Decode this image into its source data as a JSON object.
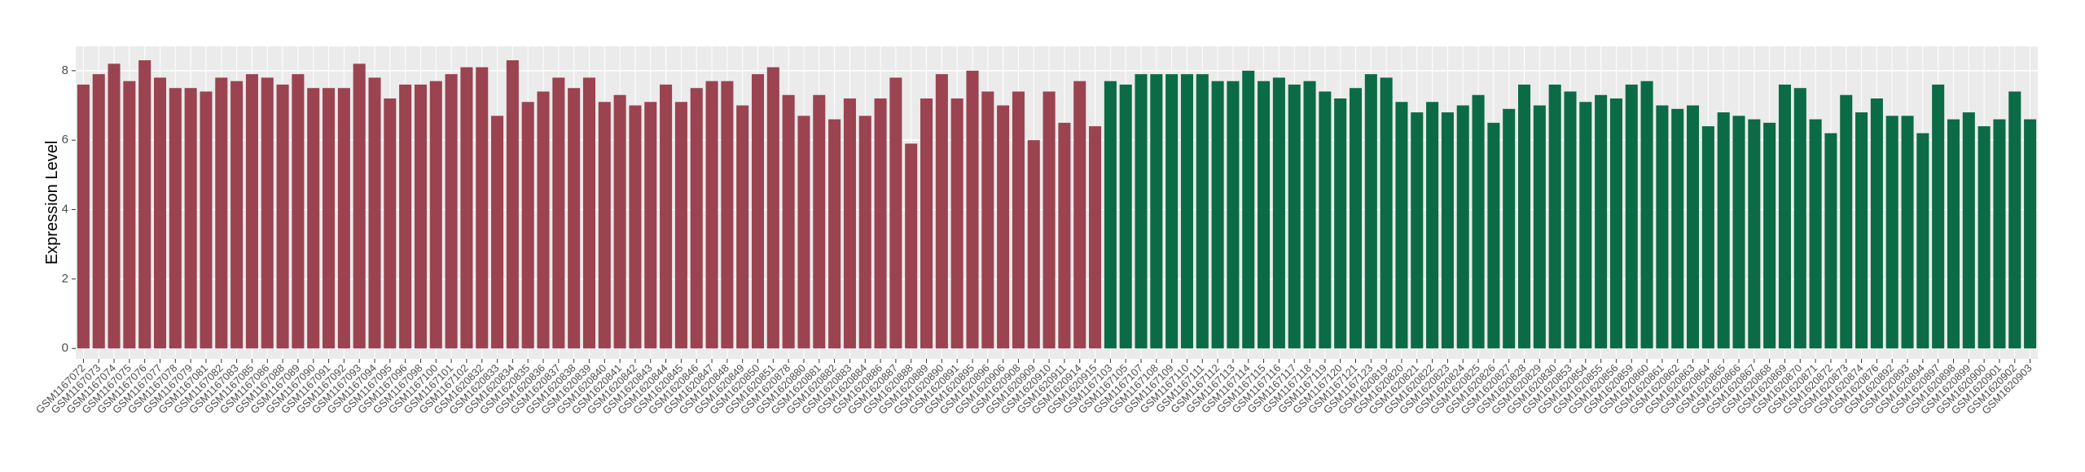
{
  "chart_data": {
    "type": "bar",
    "y_label": "Expression Level",
    "categories": [
      "GSM1167072",
      "GSM1167073",
      "GSM1167074",
      "GSM1167075",
      "GSM1167076",
      "GSM1167077",
      "GSM1167078",
      "GSM1167079",
      "GSM1167081",
      "GSM1167082",
      "GSM1167083",
      "GSM1167085",
      "GSM1167086",
      "GSM1167088",
      "GSM1167089",
      "GSM1167090",
      "GSM1167091",
      "GSM1167092",
      "GSM1167093",
      "GSM1167094",
      "GSM1167095",
      "GSM1167096",
      "GSM1167098",
      "GSM1167100",
      "GSM1167101",
      "GSM1167102",
      "GSM1620832",
      "GSM1620833",
      "GSM1620834",
      "GSM1620835",
      "GSM1620836",
      "GSM1620837",
      "GSM1620838",
      "GSM1620839",
      "GSM1620840",
      "GSM1620841",
      "GSM1620842",
      "GSM1620843",
      "GSM1620844",
      "GSM1620845",
      "GSM1620846",
      "GSM1620847",
      "GSM1620848",
      "GSM1620849",
      "GSM1620850",
      "GSM1620851",
      "GSM1620878",
      "GSM1620880",
      "GSM1620881",
      "GSM1620882",
      "GSM1620883",
      "GSM1620884",
      "GSM1620886",
      "GSM1620887",
      "GSM1620888",
      "GSM1620889",
      "GSM1620890",
      "GSM1620891",
      "GSM1620895",
      "GSM1620896",
      "GSM1620906",
      "GSM1620908",
      "GSM1620909",
      "GSM1620910",
      "GSM1620911",
      "GSM1620914",
      "GSM1620915",
      "GSM1167103",
      "GSM1167105",
      "GSM1167107",
      "GSM1167108",
      "GSM1167109",
      "GSM1167110",
      "GSM1167111",
      "GSM1167112",
      "GSM1167113",
      "GSM1167114",
      "GSM1167115",
      "GSM1167116",
      "GSM1167117",
      "GSM1167118",
      "GSM1167119",
      "GSM1167120",
      "GSM1167121",
      "GSM1167123",
      "GSM1620819",
      "GSM1620820",
      "GSM1620821",
      "GSM1620822",
      "GSM1620823",
      "GSM1620824",
      "GSM1620825",
      "GSM1620826",
      "GSM1620827",
      "GSM1620828",
      "GSM1620829",
      "GSM1620830",
      "GSM1620853",
      "GSM1620854",
      "GSM1620855",
      "GSM1620856",
      "GSM1620859",
      "GSM1620860",
      "GSM1620861",
      "GSM1620862",
      "GSM1620863",
      "GSM1620864",
      "GSM1620865",
      "GSM1620866",
      "GSM1620867",
      "GSM1620868",
      "GSM1620869",
      "GSM1620870",
      "GSM1620871",
      "GSM1620872",
      "GSM1620873",
      "GSM1620874",
      "GSM1620876",
      "GSM1620892",
      "GSM1620893",
      "GSM1620894",
      "GSM1620897",
      "GSM1620898",
      "GSM1620899",
      "GSM1620900",
      "GSM1620901",
      "GSM1620902",
      "GSM1620903"
    ],
    "series": [
      {
        "color": "#9b4350",
        "values": [
          7.6,
          7.9,
          8.2,
          7.7,
          8.3,
          7.8,
          7.5,
          7.5,
          7.4,
          7.8,
          7.7,
          7.9,
          7.8,
          7.6,
          7.9,
          7.5,
          7.5,
          7.5,
          8.2,
          7.8,
          7.2,
          7.6,
          7.6,
          7.7,
          7.9,
          8.1,
          8.1,
          6.7,
          8.3,
          7.1,
          7.4,
          7.8,
          7.5,
          7.8,
          7.1,
          7.3,
          7.0,
          7.1,
          7.6,
          7.1,
          7.5,
          7.7,
          7.7,
          7.0,
          7.9,
          8.1,
          7.3,
          6.7,
          7.3,
          6.6,
          7.2,
          6.7,
          7.2,
          7.8,
          5.9,
          7.2,
          7.9,
          7.2,
          8.0,
          7.4,
          7.0,
          7.4,
          6.0,
          7.4,
          6.5,
          7.7,
          6.4,
          null,
          null,
          null,
          null,
          null,
          null,
          null,
          null,
          null,
          null,
          null,
          null,
          null,
          null,
          null,
          null,
          null,
          null,
          null,
          null,
          null,
          null,
          null,
          null,
          null,
          null,
          null,
          null,
          null,
          null,
          null,
          null,
          null,
          null,
          null,
          null,
          null,
          null,
          null,
          null,
          null,
          null,
          null,
          null,
          null,
          null,
          null,
          null,
          null,
          null,
          null,
          null,
          null,
          null,
          null,
          null,
          null,
          null,
          null,
          null,
          null
        ]
      },
      {
        "color": "#0b6b46",
        "values": [
          null,
          null,
          null,
          null,
          null,
          null,
          null,
          null,
          null,
          null,
          null,
          null,
          null,
          null,
          null,
          null,
          null,
          null,
          null,
          null,
          null,
          null,
          null,
          null,
          null,
          null,
          null,
          null,
          null,
          null,
          null,
          null,
          null,
          null,
          null,
          null,
          null,
          null,
          null,
          null,
          null,
          null,
          null,
          null,
          null,
          null,
          null,
          null,
          null,
          null,
          null,
          null,
          null,
          null,
          null,
          null,
          null,
          null,
          null,
          null,
          null,
          null,
          null,
          null,
          null,
          null,
          null,
          7.7,
          7.6,
          7.9,
          7.9,
          7.9,
          7.9,
          7.9,
          7.7,
          7.7,
          8.0,
          7.7,
          7.8,
          7.6,
          7.7,
          7.4,
          7.2,
          7.5,
          7.9,
          7.8,
          7.1,
          6.8,
          7.1,
          6.8,
          7.0,
          7.3,
          6.5,
          6.9,
          7.6,
          7.0,
          7.6,
          7.4,
          7.1,
          7.3,
          7.2,
          7.6,
          7.7,
          7.0,
          6.9,
          7.0,
          6.4,
          6.8,
          6.7,
          6.6,
          6.5,
          7.6,
          7.5,
          6.6,
          6.2,
          7.3,
          6.8,
          7.2,
          6.7,
          6.7,
          6.2,
          7.6,
          6.6,
          6.8,
          6.4,
          6.6,
          7.4,
          6.6
        ]
      }
    ],
    "ylim": [
      -0.3,
      8.7
    ],
    "yticks": [
      0,
      2,
      4,
      6,
      8
    ],
    "grid": true,
    "panel_color": "#ebebeb"
  }
}
